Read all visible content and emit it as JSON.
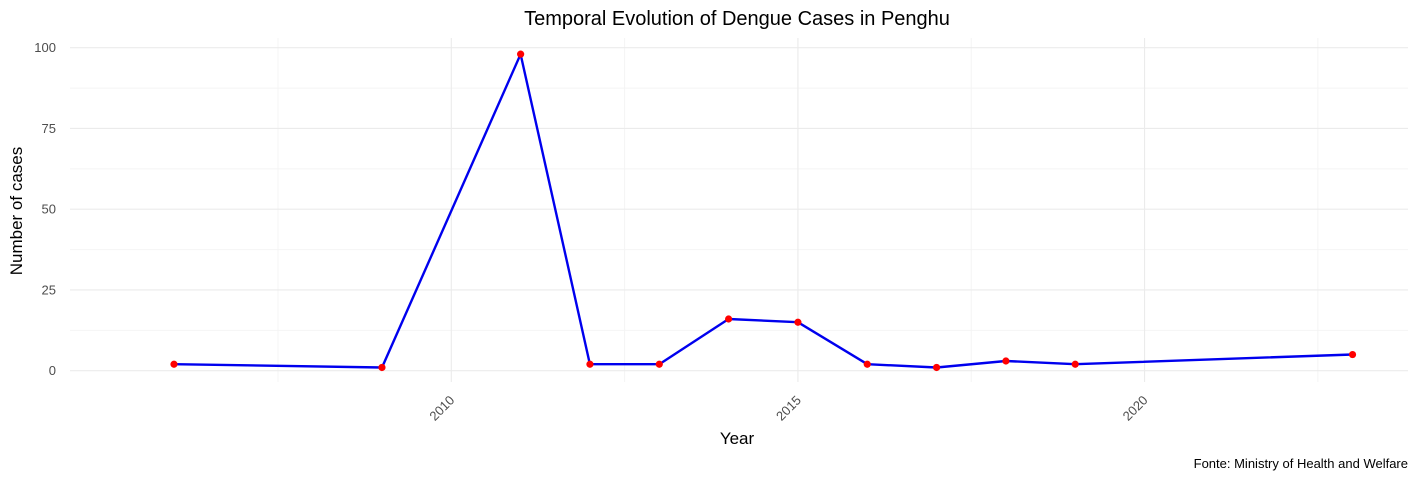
{
  "chart_data": {
    "type": "line",
    "title": "Temporal Evolution of Dengue Cases in Penghu",
    "xlabel": "Year",
    "ylabel": "Number of cases",
    "caption": "Fonte: Ministry of Health and Welfare",
    "xlim": [
      2004.5,
      2023.8
    ],
    "ylim": [
      -3.5,
      103
    ],
    "x_ticks": [
      2010,
      2015,
      2020
    ],
    "y_ticks": [
      0,
      25,
      50,
      75,
      100
    ],
    "x_tick_rotation": 45,
    "grid": true,
    "legend": "none",
    "series": [
      {
        "x": [
          2006,
          2009,
          2011,
          2012,
          2013,
          2014,
          2015,
          2016,
          2017,
          2018,
          2019,
          2023
        ],
        "y": [
          2,
          1,
          98,
          2,
          2,
          16,
          15,
          2,
          1,
          3,
          2,
          5
        ]
      }
    ]
  },
  "colors": {
    "line": "#0000ee",
    "points": "#ff0000",
    "grid_major": "#ebebeb",
    "grid_minor": "#f4f4f4",
    "tick_text": "#4d4d4d"
  }
}
